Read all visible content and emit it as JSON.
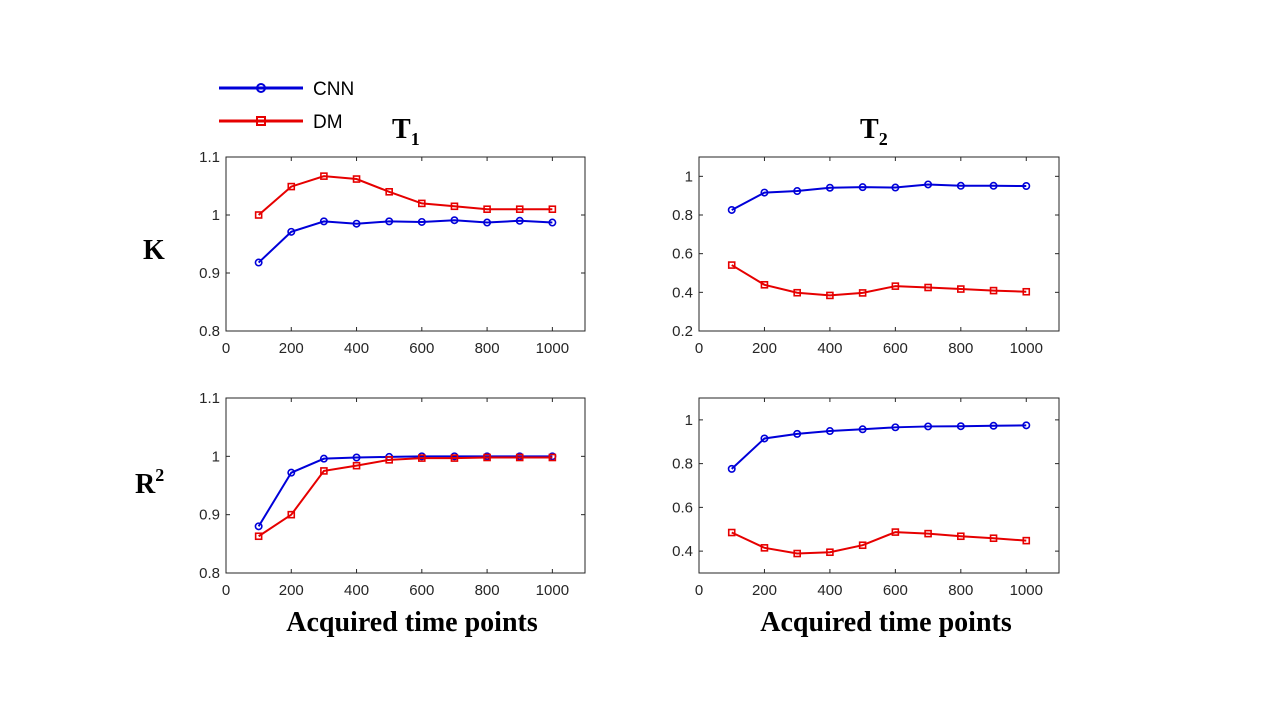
{
  "legend": [
    {
      "name": "CNN",
      "color": "#0000d9",
      "marker": "circle"
    },
    {
      "name": "DM",
      "color": "#e60000",
      "marker": "square"
    }
  ],
  "labels": {
    "col1_main": "T",
    "col1_sub": "1",
    "col2_main": "T",
    "col2_sub": "2",
    "row1": "K",
    "row2_main": "R",
    "row2_sup": "2",
    "xlabel": "Acquired time points"
  },
  "chart_data": [
    {
      "type": "line",
      "id": "k-t1",
      "row_label": "K",
      "col_label": "T1",
      "xlim": [
        0,
        1100
      ],
      "ylim": [
        0.8,
        1.1
      ],
      "xticks": [
        0,
        200,
        400,
        600,
        800,
        1000
      ],
      "yticks": [
        0.8,
        0.9,
        1.0,
        1.1
      ],
      "ytick_labels": [
        "0.8",
        "0.9",
        "1",
        "1.1"
      ],
      "x": [
        100,
        200,
        300,
        400,
        500,
        600,
        700,
        800,
        900,
        1000
      ],
      "series": [
        {
          "name": "CNN",
          "values": [
            0.918,
            0.971,
            0.989,
            0.985,
            0.989,
            0.988,
            0.991,
            0.987,
            0.99,
            0.987
          ]
        },
        {
          "name": "DM",
          "values": [
            1.0,
            1.049,
            1.067,
            1.062,
            1.04,
            1.02,
            1.015,
            1.01,
            1.01,
            1.01
          ]
        }
      ],
      "xlabel": ""
    },
    {
      "type": "line",
      "id": "k-t2",
      "row_label": "K",
      "col_label": "T2",
      "xlim": [
        0,
        1100
      ],
      "ylim": [
        0.2,
        1.1
      ],
      "xticks": [
        0,
        200,
        400,
        600,
        800,
        1000
      ],
      "yticks": [
        0.2,
        0.4,
        0.6,
        0.8,
        1.0
      ],
      "ytick_labels": [
        "0.2",
        "0.4",
        "0.6",
        "0.8",
        "1"
      ],
      "x": [
        100,
        200,
        300,
        400,
        500,
        600,
        700,
        800,
        900,
        1000
      ],
      "series": [
        {
          "name": "CNN",
          "values": [
            0.826,
            0.916,
            0.924,
            0.941,
            0.944,
            0.942,
            0.958,
            0.951,
            0.951,
            0.95
          ]
        },
        {
          "name": "DM",
          "values": [
            0.541,
            0.439,
            0.398,
            0.384,
            0.397,
            0.432,
            0.425,
            0.417,
            0.409,
            0.403
          ]
        }
      ],
      "xlabel": ""
    },
    {
      "type": "line",
      "id": "r2-t1",
      "row_label": "R2",
      "col_label": "T1",
      "xlim": [
        0,
        1100
      ],
      "ylim": [
        0.8,
        1.1
      ],
      "xticks": [
        0,
        200,
        400,
        600,
        800,
        1000
      ],
      "yticks": [
        0.8,
        0.9,
        1.0,
        1.1
      ],
      "ytick_labels": [
        "0.8",
        "0.9",
        "1",
        "1.1"
      ],
      "x": [
        100,
        200,
        300,
        400,
        500,
        600,
        700,
        800,
        900,
        1000
      ],
      "series": [
        {
          "name": "CNN",
          "values": [
            0.88,
            0.972,
            0.996,
            0.998,
            0.999,
            1.0,
            1.0,
            1.0,
            1.0,
            1.0
          ]
        },
        {
          "name": "DM",
          "values": [
            0.863,
            0.9,
            0.975,
            0.984,
            0.994,
            0.997,
            0.997,
            0.998,
            0.998,
            0.998
          ]
        }
      ],
      "xlabel": "Acquired time points"
    },
    {
      "type": "line",
      "id": "r2-t2",
      "row_label": "R2",
      "col_label": "T2",
      "xlim": [
        0,
        1100
      ],
      "ylim": [
        0.3,
        1.1
      ],
      "xticks": [
        0,
        200,
        400,
        600,
        800,
        1000
      ],
      "yticks": [
        0.4,
        0.6,
        0.8,
        1.0
      ],
      "ytick_labels": [
        "0.4",
        "0.6",
        "0.8",
        "1"
      ],
      "x": [
        100,
        200,
        300,
        400,
        500,
        600,
        700,
        800,
        900,
        1000
      ],
      "series": [
        {
          "name": "CNN",
          "values": [
            0.776,
            0.915,
            0.936,
            0.949,
            0.957,
            0.966,
            0.97,
            0.971,
            0.973,
            0.975
          ]
        },
        {
          "name": "DM",
          "values": [
            0.485,
            0.415,
            0.389,
            0.395,
            0.427,
            0.487,
            0.48,
            0.468,
            0.459,
            0.448
          ]
        }
      ],
      "xlabel": "Acquired time points"
    }
  ]
}
